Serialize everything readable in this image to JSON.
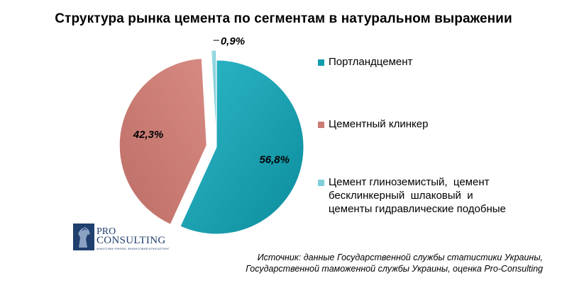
{
  "chart_data": {
    "type": "pie",
    "title": "Структура рынка цемента по сегментам в натуральном выражении",
    "slices": [
      {
        "label": "Портландцемент",
        "value": 56.8,
        "display": "56,8%",
        "color": "#0f9cad"
      },
      {
        "label": "Цементный клинкер",
        "value": 42.3,
        "display": "42,3%",
        "color": "#cb7c74"
      },
      {
        "label": "Цемент глиноземистый,  цемент бесклинкерный  шлаковый  и цементы гидравлические подобные",
        "value": 0.9,
        "display": "0,9%",
        "color": "#7fcfdb"
      }
    ],
    "legend_position": "right"
  },
  "source": {
    "line1": "Источник: данные Государственной службы статистики Украины,",
    "line2": "Государственной таможенной службы Украины, оценка Pro-Consulting"
  },
  "logo": {
    "pro": "PRO",
    "consulting": "CONSULTING",
    "tagline": "АНАЛІТИКА РИНКІВ, ФІНАНСОВИЙ КОНСАЛТИНГ"
  }
}
